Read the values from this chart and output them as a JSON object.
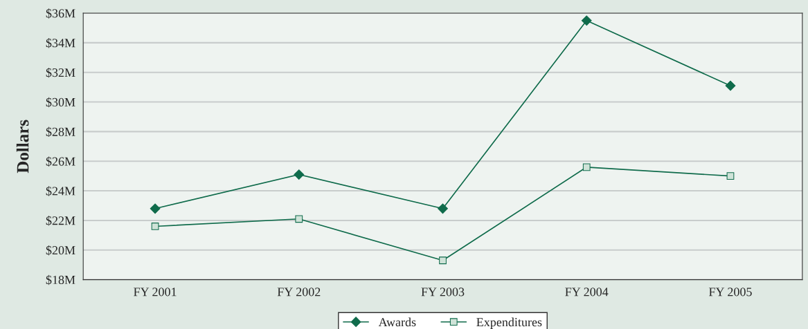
{
  "chart_data": {
    "type": "line",
    "ylabel": "Dollars",
    "categories": [
      "FY 2001",
      "FY 2002",
      "FY 2003",
      "FY 2004",
      "FY 2005"
    ],
    "series": [
      {
        "name": "Awards",
        "color": "#0f6b4b",
        "marker": "diamond",
        "values": [
          22.8,
          25.1,
          22.8,
          35.5,
          31.1
        ]
      },
      {
        "name": "Expenditures",
        "color": "#0f6b4b",
        "marker": "square",
        "values": [
          21.6,
          22.1,
          19.3,
          25.6,
          25.0
        ]
      }
    ],
    "ylim": [
      18,
      36
    ],
    "yticks": [
      {
        "value": 18,
        "label": "$18M"
      },
      {
        "value": 20,
        "label": "$20M"
      },
      {
        "value": 22,
        "label": "$22M"
      },
      {
        "value": 24,
        "label": "$24M"
      },
      {
        "value": 26,
        "label": "$26M"
      },
      {
        "value": 28,
        "label": "$28M"
      },
      {
        "value": 30,
        "label": "$30M"
      },
      {
        "value": 32,
        "label": "$32M"
      },
      {
        "value": 34,
        "label": "$34M"
      },
      {
        "value": 36,
        "label": "$36M"
      }
    ],
    "grid": "y",
    "legend": "bottom"
  }
}
